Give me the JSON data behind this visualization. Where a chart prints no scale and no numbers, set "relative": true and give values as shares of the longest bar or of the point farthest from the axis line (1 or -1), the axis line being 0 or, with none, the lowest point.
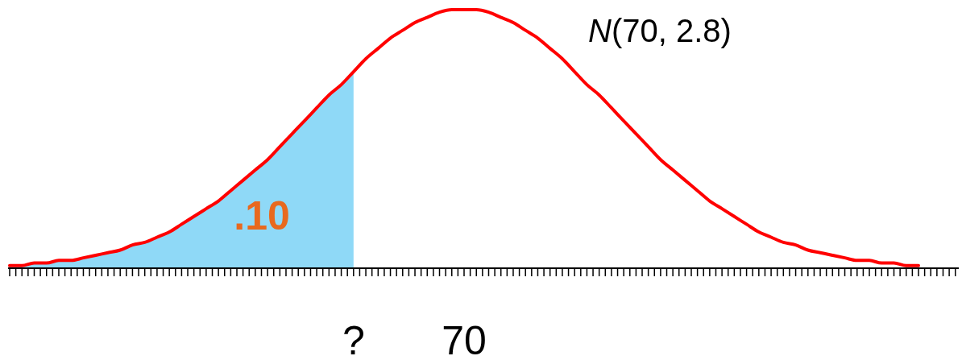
{
  "chart_data": {
    "type": "line",
    "relative": true,
    "title": "N(70, 2.8)",
    "categories": [
      null,
      null,
      null,
      null,
      null,
      null,
      null,
      null,
      null,
      null,
      null,
      null,
      null,
      null,
      null,
      null,
      null,
      null,
      null,
      null,
      null,
      null,
      null,
      null,
      null,
      null,
      null,
      null,
      "?",
      null,
      null,
      null,
      null,
      null,
      null,
      null,
      null,
      "70",
      null,
      null,
      null,
      null,
      null,
      null,
      null,
      null,
      null,
      null,
      null,
      null,
      null,
      null,
      null,
      null,
      null,
      null,
      null,
      null,
      null,
      null,
      null,
      null,
      null,
      null,
      null,
      null,
      null,
      null,
      null,
      null,
      null,
      null,
      null,
      null,
      null
    ],
    "series": [
      {
        "type": "area",
        "color": "#8fd9f7",
        "values": [
          0.01,
          0.01,
          0.02,
          0.02,
          0.03,
          0.03,
          0.04,
          0.05,
          0.06,
          0.07,
          0.09,
          0.1,
          0.12,
          0.14,
          0.17,
          0.2,
          0.23,
          0.26,
          0.3,
          0.34,
          0.38,
          0.42,
          0.47,
          0.52,
          0.57,
          0.62,
          0.67,
          0.71,
          0.76,
          null,
          null,
          null,
          null,
          null,
          null,
          null,
          null,
          null,
          null,
          null,
          null,
          null,
          null,
          null,
          null,
          null,
          null,
          null,
          null,
          null,
          null,
          null,
          null,
          null,
          null,
          null,
          null,
          null,
          null,
          null,
          null,
          null,
          null,
          null,
          null,
          null,
          null,
          null,
          null,
          null,
          null,
          null,
          null,
          null,
          null
        ]
      },
      {
        "color": "#ff0000",
        "values": [
          0.01,
          0.01,
          0.02,
          0.02,
          0.03,
          0.03,
          0.04,
          0.05,
          0.06,
          0.07,
          0.09,
          0.1,
          0.12,
          0.14,
          0.17,
          0.2,
          0.23,
          0.26,
          0.3,
          0.34,
          0.38,
          0.42,
          0.47,
          0.52,
          0.57,
          0.62,
          0.67,
          0.71,
          0.76,
          0.81,
          0.85,
          0.89,
          0.92,
          0.95,
          0.97,
          0.99,
          1.0,
          1,
          1.0,
          0.99,
          0.97,
          0.95,
          0.92,
          0.89,
          0.85,
          0.81,
          0.76,
          0.71,
          0.67,
          0.62,
          0.57,
          0.52,
          0.47,
          0.42,
          0.38,
          0.34,
          0.3,
          0.26,
          0.23,
          0.2,
          0.17,
          0.14,
          0.12,
          0.1,
          0.09,
          0.07,
          0.06,
          0.05,
          0.04,
          0.03,
          0.03,
          0.02,
          0.02,
          0.01,
          0.01
        ]
      }
    ],
    "annotations": [
      ".10"
    ]
  }
}
